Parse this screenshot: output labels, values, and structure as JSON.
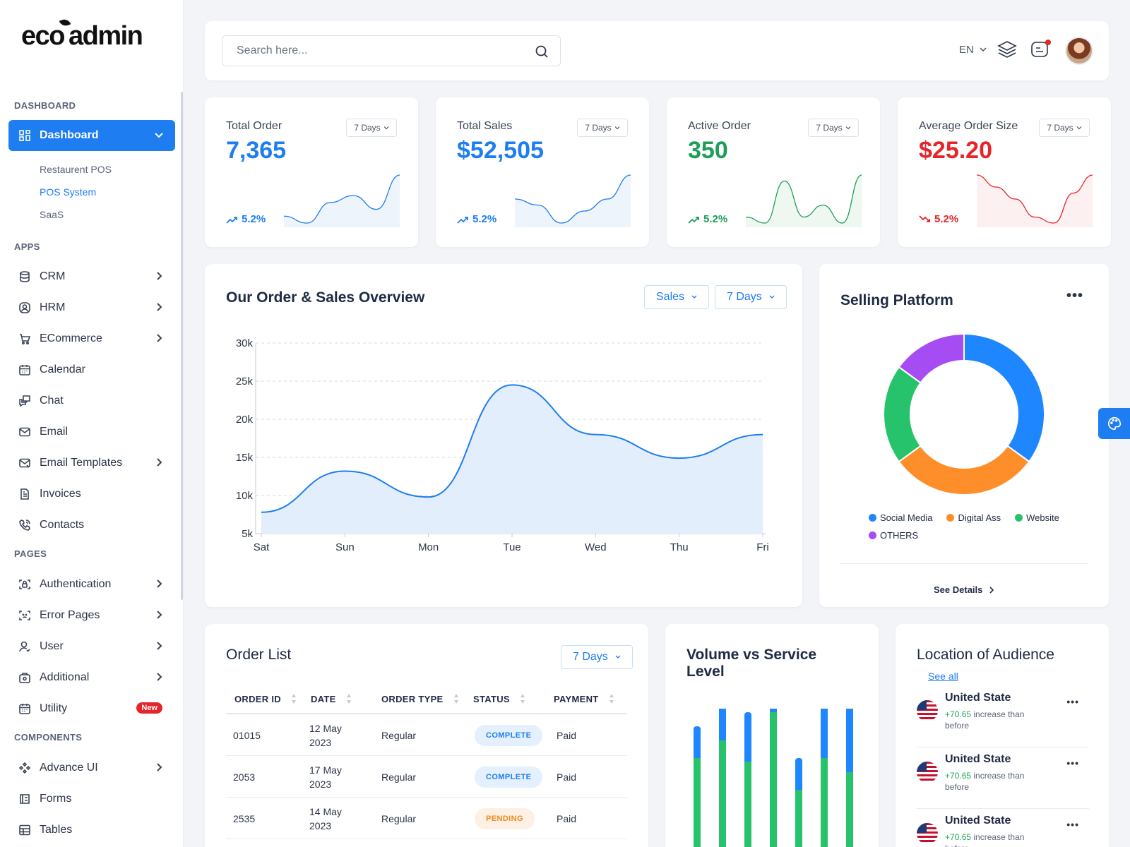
{
  "brand": {
    "logo_text_a": "eco",
    "logo_text_b": "admin"
  },
  "sidebar": {
    "sections": {
      "dashboard": "DASHBOARD",
      "apps": "APPS",
      "pages": "PAGES",
      "components": "COMPONENTS"
    },
    "dashboard_item": {
      "label": "Dashboard",
      "icon": "grid-icon"
    },
    "dashboard_sub": [
      "Restaurent POS",
      "POS System",
      "SaaS"
    ],
    "apps": [
      {
        "label": "CRM",
        "icon": "database-icon",
        "chevron": true
      },
      {
        "label": "HRM",
        "icon": "user-circle-icon",
        "chevron": true
      },
      {
        "label": "ECommerce",
        "icon": "cart-icon",
        "chevron": true
      },
      {
        "label": "Calendar",
        "icon": "calendar-icon",
        "chevron": false
      },
      {
        "label": "Chat",
        "icon": "chat-icon",
        "chevron": false
      },
      {
        "label": "Email",
        "icon": "mail-icon",
        "chevron": false
      },
      {
        "label": "Email Templates",
        "icon": "mail-template-icon",
        "chevron": true
      },
      {
        "label": "Invoices",
        "icon": "invoice-icon",
        "chevron": false
      },
      {
        "label": "Contacts",
        "icon": "phone-icon",
        "chevron": false
      }
    ],
    "pages": [
      {
        "label": "Authentication",
        "icon": "lock-scan-icon",
        "chevron": true
      },
      {
        "label": "Error Pages",
        "icon": "error-scan-icon",
        "chevron": true
      },
      {
        "label": "User",
        "icon": "user-icon",
        "chevron": true
      },
      {
        "label": "Additional",
        "icon": "gear-box-icon",
        "chevron": true
      },
      {
        "label": "Utility",
        "icon": "calendar-icon",
        "badge": "New"
      }
    ],
    "components": [
      {
        "label": "Advance UI",
        "icon": "components-icon",
        "chevron": true
      },
      {
        "label": "Forms",
        "icon": "form-icon",
        "chevron": false
      },
      {
        "label": "Tables",
        "icon": "table-icon",
        "chevron": false
      }
    ]
  },
  "topbar": {
    "search_placeholder": "Search here...",
    "language": "EN"
  },
  "kpis": [
    {
      "title": "Total Order",
      "value": "7,365",
      "period": "7 Days",
      "trend": "5.2%",
      "direction": "up",
      "color": "#1e7df0",
      "fill": "#eef4fc",
      "spark": [
        3,
        2,
        5,
        6,
        4,
        9
      ]
    },
    {
      "title": "Total Sales",
      "value": "$52,505",
      "period": "7 Days",
      "trend": "5.2%",
      "direction": "up",
      "color": "#1e7df0",
      "fill": "#eef4fc",
      "spark": [
        5,
        4,
        1,
        3,
        5,
        9
      ]
    },
    {
      "title": "Active Order",
      "value": "350",
      "period": "7 Days",
      "trend": "5.2%",
      "direction": "up",
      "color": "#1e9e58",
      "fill": "#eef8f1",
      "spark": [
        2,
        1,
        8,
        2,
        4,
        1,
        9
      ]
    },
    {
      "title": "Average Order Size",
      "value": "$25.20",
      "period": "7 Days",
      "trend": "5.2%",
      "direction": "down",
      "color": "#e5252a",
      "fill": "#fdf0f0",
      "spark": [
        9,
        7,
        5,
        2,
        1,
        6,
        9
      ]
    }
  ],
  "overview": {
    "title": "Our Order & Sales Overview",
    "metric_select": "Sales",
    "period_select": "7 Days"
  },
  "chart_data": {
    "type": "area",
    "categories": [
      "Sat",
      "Sun",
      "Mon",
      "Tue",
      "Wed",
      "Thu",
      "Fri"
    ],
    "values": [
      7800,
      13200,
      9800,
      24500,
      18000,
      14900,
      18000
    ],
    "yticks": [
      "30k",
      "25k",
      "20k",
      "15k",
      "10k",
      "5k"
    ],
    "ylim": [
      5000,
      30000
    ],
    "grid": true,
    "color": "#1e7df0"
  },
  "platform": {
    "title": "Selling Platform",
    "segments": [
      {
        "name": "Social Media",
        "value": 35,
        "color": "#1e86ff"
      },
      {
        "name": "Digital Ass",
        "value": 30,
        "color": "#fd8e2a"
      },
      {
        "name": "Website",
        "value": 20,
        "color": "#27c26c"
      },
      {
        "name": "OTHERS",
        "value": 15,
        "color": "#a54df2"
      }
    ],
    "details_label": "See Details"
  },
  "orders": {
    "title": "Order List",
    "period_select": "7 Days",
    "columns": [
      "ORDER ID",
      "DATE",
      "ORDER TYPE",
      "STATUS",
      "PAYMENT"
    ],
    "rows": [
      {
        "id": "01015",
        "date_a": "12 May",
        "date_b": "2023",
        "type": "Regular",
        "status": "COMPLETE",
        "status_kind": "complete",
        "payment": "Paid"
      },
      {
        "id": "2053",
        "date_a": "17 May",
        "date_b": "2023",
        "type": "Regular",
        "status": "COMPLETE",
        "status_kind": "complete",
        "payment": "Paid"
      },
      {
        "id": "2535",
        "date_a": "14 May",
        "date_b": "2023",
        "type": "Regular",
        "status": "PENDING",
        "status_kind": "pending",
        "payment": "Paid"
      }
    ]
  },
  "volume": {
    "title": "Volume vs Service Level",
    "bars": [
      {
        "volume": 45,
        "service": 130
      },
      {
        "volume": 80,
        "service": 155
      },
      {
        "volume": 70,
        "service": 125
      },
      {
        "volume": 60,
        "service": 195
      },
      {
        "volume": 45,
        "service": 85
      },
      {
        "volume": 90,
        "service": 130
      },
      {
        "volume": 150,
        "service": 110
      }
    ],
    "volume_color": "#1e86ff",
    "service_color": "#27c26c"
  },
  "audience": {
    "title": "Location of Audience",
    "link": "See all",
    "items": [
      {
        "country": "United State",
        "change": "+70.65",
        "text_a": " increase than",
        "text_b": "before"
      },
      {
        "country": "United State",
        "change": "+70.65",
        "text_a": " increase than",
        "text_b": "before"
      },
      {
        "country": "United State",
        "change": "+70.65",
        "text_a": " increase than",
        "text_b": "before"
      }
    ]
  },
  "accent": "#1e7df0"
}
